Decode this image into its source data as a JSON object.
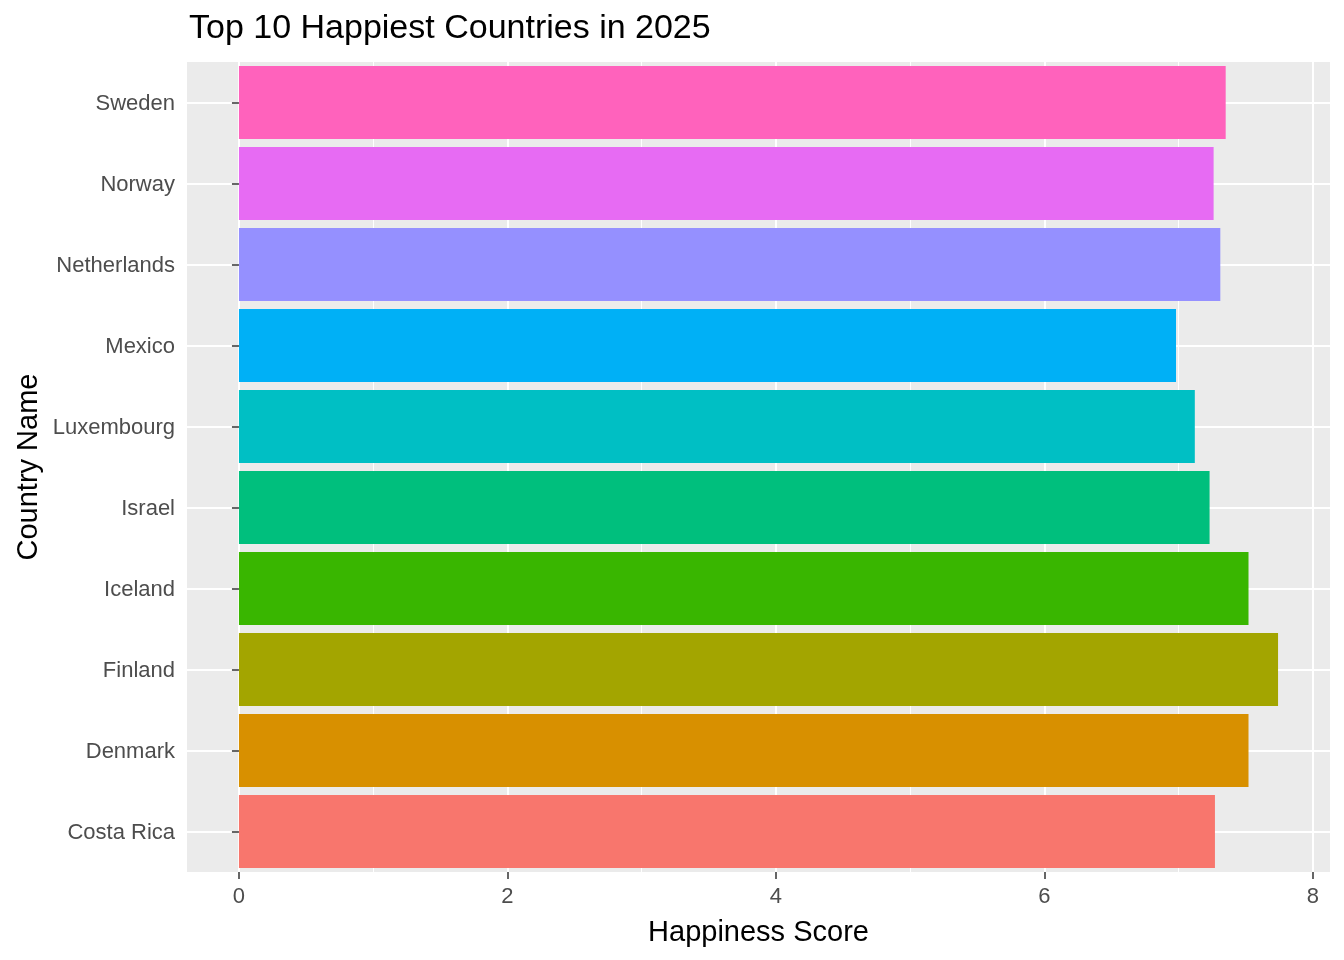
{
  "chart_data": {
    "type": "bar",
    "orientation": "horizontal",
    "title": "Top 10 Happiest Countries in 2025",
    "xlabel": "Happiness Score",
    "ylabel": "Country Name",
    "categories": [
      "Sweden",
      "Norway",
      "Netherlands",
      "Mexico",
      "Luxembourg",
      "Israel",
      "Iceland",
      "Finland",
      "Denmark",
      "Costa Rica"
    ],
    "values": [
      7.35,
      7.26,
      7.31,
      6.98,
      7.12,
      7.23,
      7.52,
      7.74,
      7.52,
      7.27
    ],
    "colors": [
      "#ff62bc",
      "#e76bf3",
      "#9590ff",
      "#00b0f6",
      "#00bfc4",
      "#00bf7d",
      "#39b600",
      "#a3a500",
      "#d89000",
      "#f8766d"
    ],
    "xlim": [
      -0.387,
      8.127
    ],
    "xticks": [
      0,
      2,
      4,
      6,
      8
    ],
    "grid": true
  }
}
